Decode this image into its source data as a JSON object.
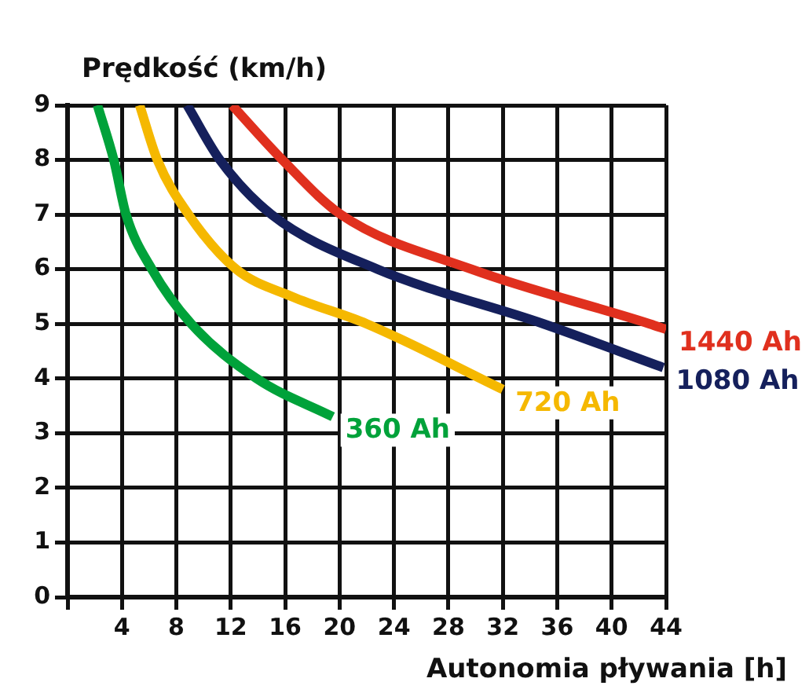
{
  "chart_data": {
    "type": "line",
    "xlabel": "Autonomia pływania [h]",
    "ylabel": "Prędkość (km/h)",
    "xlim": [
      0,
      44
    ],
    "ylim": [
      0,
      9
    ],
    "xticks": [
      4,
      8,
      12,
      16,
      20,
      24,
      28,
      32,
      36,
      40,
      44
    ],
    "yticks": [
      0,
      1,
      2,
      3,
      4,
      5,
      6,
      7,
      8,
      9
    ],
    "grid": true,
    "legend": false,
    "marker": "none",
    "line_style": "solid",
    "series": [
      {
        "name": "360 Ah",
        "color": "#00a23a",
        "x": [
          2.2,
          3.4,
          4.3,
          6.2,
          9.1,
          13.9,
          19.5
        ],
        "values": [
          9,
          8,
          7,
          6,
          5,
          4,
          3.3
        ]
      },
      {
        "name": "720 Ah",
        "color": "#f5b800",
        "x": [
          5.3,
          6.6,
          8.9,
          12.4,
          16.5,
          22,
          32
        ],
        "values": [
          9,
          8,
          7,
          6,
          5.5,
          5,
          3.8
        ]
      },
      {
        "name": "1080 Ah",
        "color": "#15205c",
        "x": [
          8.8,
          11.2,
          15,
          22.8,
          35,
          43.8
        ],
        "values": [
          9,
          8,
          7,
          6,
          5,
          4.2
        ]
      },
      {
        "name": "1440 Ah",
        "color": "#e0301e",
        "x": [
          12.1,
          15.8,
          20.1,
          29.7,
          42.8,
          44
        ],
        "values": [
          9,
          8,
          7,
          6,
          5,
          4.9
        ]
      }
    ]
  }
}
